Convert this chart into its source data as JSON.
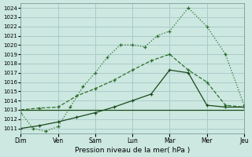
{
  "title": "",
  "xlabel": "Pression niveau de la mer( hPa )",
  "ylabel": "",
  "background_color": "#cce8e0",
  "grid_color": "#aacccc",
  "plot_bg": "#cce8e0",
  "ylim": [
    1010.5,
    1024.5
  ],
  "yticks": [
    1011,
    1012,
    1013,
    1014,
    1015,
    1016,
    1017,
    1018,
    1019,
    1020,
    1021,
    1022,
    1023,
    1024
  ],
  "x_labels": [
    "Dim",
    "Ven",
    "Sam",
    "Lun",
    "Mar",
    "Mer",
    "Jeu"
  ],
  "line1_dotted": {
    "x": [
      0,
      0.33,
      0.67,
      1.0,
      1.33,
      1.67,
      2.0,
      2.33,
      2.67,
      3.0,
      3.33,
      3.67,
      4.0,
      4.5,
      5.0,
      5.5,
      6.0
    ],
    "y": [
      1012.7,
      1011.0,
      1010.7,
      1011.2,
      1013.3,
      1015.5,
      1017.0,
      1018.7,
      1020.0,
      1020.0,
      1019.8,
      1021.0,
      1021.5,
      1024.0,
      1022.0,
      1019.0,
      1013.5
    ],
    "color": "#2d6e2d",
    "linestyle": "dotted",
    "marker": "+"
  },
  "line2_dashed": {
    "x": [
      0,
      0.5,
      1.0,
      1.5,
      2.0,
      2.5,
      3.0,
      3.5,
      4.0,
      4.5,
      5.0,
      5.5,
      6.0
    ],
    "y": [
      1013.0,
      1013.2,
      1013.3,
      1014.5,
      1015.3,
      1016.2,
      1017.3,
      1018.3,
      1019.0,
      1017.3,
      1016.0,
      1013.5,
      1013.3
    ],
    "color": "#2d6e2d",
    "linestyle": "dashed",
    "marker": "+"
  },
  "line3_flat": {
    "x": [
      0,
      6
    ],
    "y": [
      1013.0,
      1013.0
    ],
    "color": "#1a4a1a",
    "linestyle": "solid"
  },
  "line4_solid": {
    "x": [
      0,
      0.5,
      1.0,
      1.5,
      2.0,
      2.5,
      3.0,
      3.5,
      4.0,
      4.5,
      5.0,
      5.5,
      6.0
    ],
    "y": [
      1011.0,
      1011.3,
      1011.7,
      1012.2,
      1012.7,
      1013.3,
      1014.0,
      1014.7,
      1017.3,
      1017.0,
      1013.5,
      1013.3,
      1013.3
    ],
    "color": "#1a4a1a",
    "linestyle": "solid",
    "marker": "+"
  },
  "x_sep": [
    0,
    1,
    2,
    3,
    4,
    5,
    6
  ]
}
